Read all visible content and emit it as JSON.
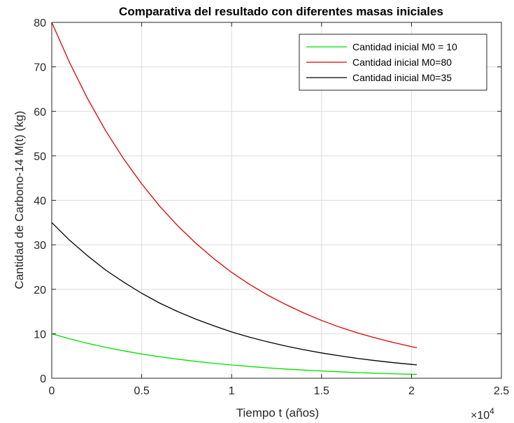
{
  "chart_data": {
    "type": "line",
    "title": "Comparativa del resultado con diferentes masas iniciales",
    "xlabel": "Tiempo    t    (años)",
    "ylabel": "Cantidad de Carbono-14   M(t)    (kg)",
    "x_exponent_label": "×10",
    "x_exponent_power": "4",
    "xlim": [
      0,
      25000
    ],
    "ylim": [
      0,
      80
    ],
    "x_ticks": [
      0,
      5000,
      10000,
      15000,
      20000,
      25000
    ],
    "x_tick_labels": [
      "0",
      "0.5",
      "1",
      "1.5",
      "2",
      "2.5"
    ],
    "y_ticks": [
      0,
      10,
      20,
      30,
      40,
      50,
      60,
      70,
      80
    ],
    "y_tick_labels": [
      "0",
      "10",
      "20",
      "30",
      "40",
      "50",
      "60",
      "70",
      "80"
    ],
    "grid": true,
    "legend_position": "top-right",
    "x": [
      0,
      1000,
      2000,
      3000,
      4000,
      5000,
      6000,
      7000,
      8000,
      9000,
      10000,
      11000,
      12000,
      13000,
      14000,
      15000,
      16000,
      17000,
      18000,
      19000,
      20000,
      20300
    ],
    "series": [
      {
        "name": "Cantidad inicial M0 = 10",
        "color": "#00e000",
        "values": [
          10,
          8.86,
          7.85,
          6.95,
          6.16,
          5.46,
          4.84,
          4.29,
          3.8,
          3.36,
          2.98,
          2.64,
          2.34,
          2.07,
          1.84,
          1.63,
          1.44,
          1.28,
          1.13,
          1.0,
          0.89,
          0.86
        ]
      },
      {
        "name": "Cantidad inicial M0=80",
        "color": "#e00000",
        "values": [
          80,
          70.9,
          62.8,
          55.6,
          49.3,
          43.7,
          38.7,
          34.3,
          30.4,
          26.9,
          23.8,
          21.1,
          18.7,
          16.6,
          14.7,
          13.0,
          11.5,
          10.2,
          9.06,
          8.03,
          7.11,
          6.85
        ]
      },
      {
        "name": "Cantidad inicial M0=35",
        "color": "#000000",
        "values": [
          35,
          31.0,
          27.5,
          24.3,
          21.6,
          19.1,
          16.9,
          15.0,
          13.3,
          11.8,
          10.4,
          9.24,
          8.19,
          7.25,
          6.43,
          5.69,
          5.04,
          4.47,
          3.96,
          3.51,
          3.11,
          3.0
        ]
      }
    ]
  }
}
